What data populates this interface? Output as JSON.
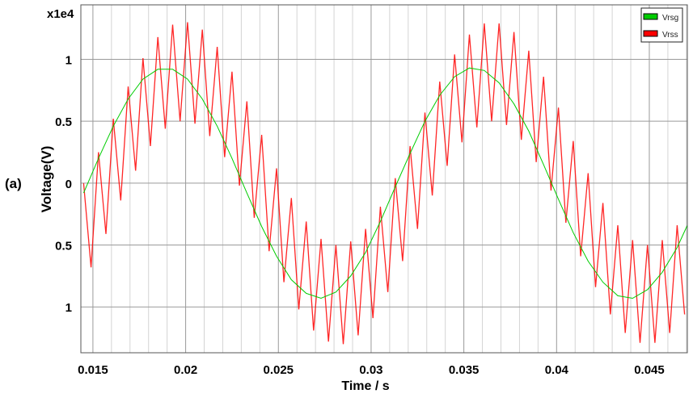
{
  "chart_data": {
    "type": "line",
    "panel_label": "(a)",
    "xlabel": "Time / s",
    "ylabel": "Voltage(V)",
    "y_multiplier": "x1e4",
    "xlim": [
      0.01435,
      0.04705
    ],
    "ylim": [
      -1.37,
      1.44
    ],
    "xticks": [
      0.015,
      0.02,
      0.025,
      0.03,
      0.035,
      0.04,
      0.045
    ],
    "xtick_labels": [
      "0.015",
      "0.02",
      "0.025",
      "0.03",
      "0.035",
      "0.04",
      "0.045"
    ],
    "yticks": [
      1,
      0.5,
      0,
      -0.5,
      -1
    ],
    "ytick_labels": [
      "1",
      "0.5",
      "0",
      "0.5",
      "1"
    ],
    "grid": true,
    "legend_placement": "top-right",
    "series": [
      {
        "name": "Vrsg",
        "color": "#00cc00",
        "x": [
          0.0145,
          0.0153,
          0.0161,
          0.0169,
          0.0177,
          0.0185,
          0.0193,
          0.0201,
          0.0209,
          0.0217,
          0.0225,
          0.0233,
          0.0241,
          0.0249,
          0.0257,
          0.0265,
          0.0273,
          0.0281,
          0.0289,
          0.0297,
          0.0305,
          0.0313,
          0.0321,
          0.0329,
          0.0337,
          0.0345,
          0.0353,
          0.0361,
          0.0369,
          0.0377,
          0.0385,
          0.0393,
          0.0401,
          0.0409,
          0.0417,
          0.0425,
          0.0433,
          0.0441,
          0.0449,
          0.0457,
          0.0465,
          0.0473
        ],
        "y": [
          -0.08,
          0.2,
          0.46,
          0.68,
          0.84,
          0.92,
          0.92,
          0.84,
          0.68,
          0.46,
          0.2,
          -0.08,
          -0.35,
          -0.59,
          -0.78,
          -0.89,
          -0.93,
          -0.88,
          -0.75,
          -0.56,
          -0.31,
          -0.03,
          0.24,
          0.5,
          0.71,
          0.86,
          0.93,
          0.91,
          0.81,
          0.64,
          0.42,
          0.15,
          -0.13,
          -0.4,
          -0.63,
          -0.8,
          -0.91,
          -0.93,
          -0.86,
          -0.72,
          -0.52,
          -0.26
        ]
      },
      {
        "name": "Vrss",
        "color": "#ff0000",
        "x": [
          0.0145,
          0.0149,
          0.0153,
          0.0157,
          0.0161,
          0.0165,
          0.0169,
          0.0173,
          0.0177,
          0.0181,
          0.0185,
          0.0189,
          0.0193,
          0.0197,
          0.0201,
          0.0205,
          0.0209,
          0.0213,
          0.0217,
          0.0221,
          0.0225,
          0.0229,
          0.0233,
          0.0237,
          0.0241,
          0.0245,
          0.0249,
          0.0253,
          0.0257,
          0.0261,
          0.0265,
          0.0269,
          0.0273,
          0.0277,
          0.0281,
          0.0285,
          0.0289,
          0.0293,
          0.0297,
          0.0301,
          0.0305,
          0.0309,
          0.0313,
          0.0317,
          0.0321,
          0.0325,
          0.0329,
          0.0333,
          0.0337,
          0.0341,
          0.0345,
          0.0349,
          0.0353,
          0.0357,
          0.0361,
          0.0365,
          0.0369,
          0.0373,
          0.0377,
          0.0381,
          0.0385,
          0.0389,
          0.0393,
          0.0397,
          0.0401,
          0.0405,
          0.0409,
          0.0413,
          0.0417,
          0.0421,
          0.0425,
          0.0429,
          0.0433,
          0.0437,
          0.0441,
          0.0445,
          0.0449,
          0.0453,
          0.0457,
          0.0461,
          0.0465,
          0.0469
        ],
        "y": [
          0.0,
          -0.68,
          0.25,
          -0.41,
          0.52,
          -0.14,
          0.78,
          0.1,
          1.01,
          0.3,
          1.18,
          0.44,
          1.28,
          0.5,
          1.3,
          0.48,
          1.24,
          0.38,
          1.1,
          0.21,
          0.9,
          -0.02,
          0.66,
          -0.28,
          0.39,
          -0.55,
          0.12,
          -0.8,
          -0.12,
          -1.02,
          -0.31,
          -1.19,
          -0.45,
          -1.28,
          -0.5,
          -1.3,
          -0.47,
          -1.23,
          -0.37,
          -1.09,
          -0.19,
          -0.88,
          0.04,
          -0.63,
          0.3,
          -0.37,
          0.57,
          -0.1,
          0.82,
          0.14,
          1.04,
          0.33,
          1.2,
          0.45,
          1.29,
          0.5,
          1.29,
          0.47,
          1.22,
          0.35,
          1.07,
          0.17,
          0.86,
          -0.06,
          0.61,
          -0.32,
          0.34,
          -0.59,
          0.08,
          -0.84,
          -0.16,
          -1.06,
          -0.34,
          -1.21,
          -0.46,
          -1.29,
          -0.5,
          -1.29,
          -0.46,
          -1.21,
          -0.34,
          -1.06
        ]
      }
    ]
  }
}
